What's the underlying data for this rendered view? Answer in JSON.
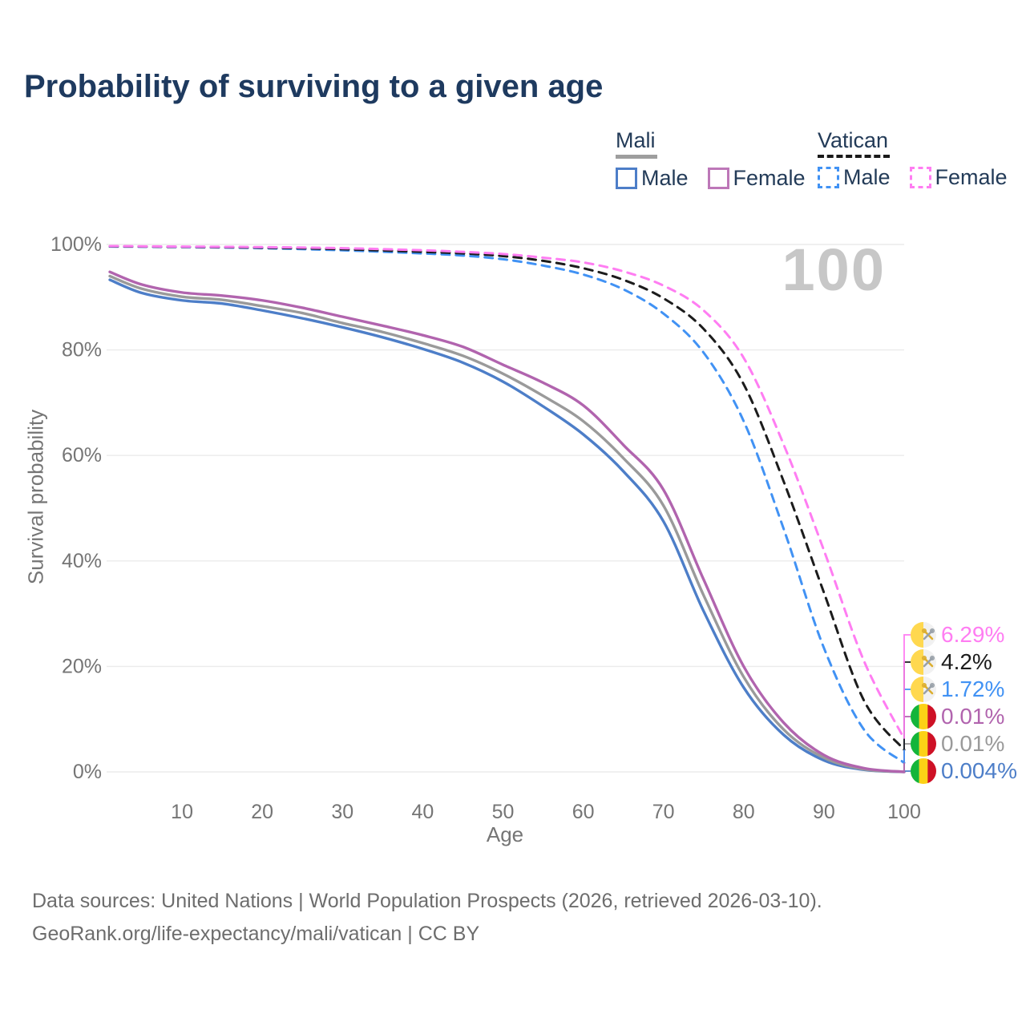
{
  "title": "Probability of surviving to a given age",
  "watermark_age": "100",
  "legend": {
    "groups": [
      {
        "id": "mali",
        "title": "Mali",
        "line_style": "solid",
        "underline_color": "#9e9e9e",
        "items": [
          {
            "id": "mali-male",
            "label": "Male",
            "color": "#4d7ec8",
            "line_style": "solid"
          },
          {
            "id": "mali-female",
            "label": "Female",
            "color": "#bd77b8",
            "line_style": "solid"
          }
        ]
      },
      {
        "id": "vatican",
        "title": "Vatican",
        "line_style": "dashed",
        "underline_color": "#1a1a1a",
        "items": [
          {
            "id": "vatican-male",
            "label": "Male",
            "color": "#4192f4",
            "line_style": "dashed"
          },
          {
            "id": "vatican-female",
            "label": "Female",
            "color": "#ff7df2",
            "line_style": "dashed"
          }
        ]
      }
    ]
  },
  "axes": {
    "y_title": "Survival probability",
    "x_title": "Age",
    "y_ticks": [
      {
        "value": 100,
        "label": "100%"
      },
      {
        "value": 80,
        "label": "80%"
      },
      {
        "value": 60,
        "label": "60%"
      },
      {
        "value": 40,
        "label": "40%"
      },
      {
        "value": 20,
        "label": "20%"
      },
      {
        "value": 0,
        "label": "0%"
      }
    ],
    "x_ticks": [
      {
        "value": 10,
        "label": "10"
      },
      {
        "value": 20,
        "label": "20"
      },
      {
        "value": 30,
        "label": "30"
      },
      {
        "value": 40,
        "label": "40"
      },
      {
        "value": 50,
        "label": "50"
      },
      {
        "value": 60,
        "label": "60"
      },
      {
        "value": 70,
        "label": "70"
      },
      {
        "value": 80,
        "label": "80"
      },
      {
        "value": 90,
        "label": "90"
      },
      {
        "value": 100,
        "label": "100"
      }
    ]
  },
  "footer": {
    "line1": "Data sources: United Nations | World Population Prospects (2026, retrieved 2026-03-10).",
    "line2": "GeoRank.org/life-expectancy/mali/vatican | CC BY"
  },
  "chart_data": {
    "type": "line",
    "title": "Probability of surviving to a given age",
    "xlabel": "Age",
    "ylabel": "Survival probability",
    "xlim": [
      1,
      100
    ],
    "ylim": [
      0,
      100
    ],
    "grid": "horizontal",
    "legend_position": "top-right",
    "series": [
      {
        "id": "vatican-male",
        "country": "Vatican",
        "sex": "Male",
        "color": "#4192f4",
        "line_style": "dashed",
        "flag": "vatican",
        "end_label": "1.72%",
        "x": [
          1,
          10,
          20,
          30,
          40,
          45,
          50,
          55,
          60,
          65,
          70,
          75,
          80,
          85,
          90,
          95,
          100
        ],
        "values": [
          99.6,
          99.5,
          99.3,
          98.9,
          98.3,
          97.9,
          97.2,
          96.0,
          94.3,
          91.5,
          86.9,
          79.5,
          66.5,
          46.0,
          23.5,
          8.0,
          1.72
        ]
      },
      {
        "id": "vatican-all",
        "country": "Vatican",
        "sex": "All",
        "color": "#1c1c1c",
        "line_style": "dashed",
        "flag": "vatican",
        "end_label": "4.2%",
        "x": [
          1,
          10,
          20,
          30,
          40,
          45,
          50,
          55,
          60,
          65,
          70,
          75,
          80,
          85,
          90,
          95,
          100
        ],
        "values": [
          99.65,
          99.55,
          99.4,
          99.1,
          98.6,
          98.3,
          97.8,
          96.9,
          95.5,
          93.3,
          89.8,
          84.0,
          73.5,
          55.0,
          34.0,
          13.5,
          4.2
        ]
      },
      {
        "id": "vatican-female",
        "country": "Vatican",
        "sex": "Female",
        "color": "#ff7df2",
        "line_style": "dashed",
        "flag": "vatican",
        "end_label": "6.29%",
        "x": [
          1,
          10,
          20,
          30,
          40,
          45,
          50,
          55,
          60,
          65,
          70,
          75,
          80,
          85,
          90,
          95,
          100
        ],
        "values": [
          99.7,
          99.6,
          99.5,
          99.3,
          98.9,
          98.6,
          98.2,
          97.5,
          96.6,
          94.9,
          92.2,
          87.5,
          78.5,
          62.0,
          42.0,
          21.0,
          6.29
        ]
      },
      {
        "id": "mali-male",
        "country": "Mali",
        "sex": "Male",
        "color": "#4d7ec8",
        "line_style": "solid",
        "flag": "mali",
        "end_label": "0.004%",
        "x": [
          1,
          5,
          10,
          15,
          20,
          25,
          30,
          35,
          40,
          45,
          50,
          55,
          60,
          65,
          70,
          75,
          80,
          85,
          90,
          95,
          100
        ],
        "values": [
          93.3,
          90.8,
          89.4,
          88.8,
          87.5,
          86.0,
          84.3,
          82.4,
          80.2,
          77.6,
          74.0,
          69.3,
          64.0,
          57.0,
          47.5,
          30.5,
          16.0,
          7.0,
          2.2,
          0.4,
          0.004
        ]
      },
      {
        "id": "mali-all",
        "country": "Mali",
        "sex": "All",
        "color": "#9a9a9a",
        "line_style": "solid",
        "flag": "mali",
        "end_label": "0.01%",
        "x": [
          1,
          5,
          10,
          15,
          20,
          25,
          30,
          35,
          40,
          45,
          50,
          55,
          60,
          65,
          70,
          75,
          80,
          85,
          90,
          95,
          100
        ],
        "values": [
          94.0,
          91.6,
          90.1,
          89.5,
          88.3,
          87.0,
          85.1,
          83.4,
          81.3,
          78.9,
          75.5,
          71.3,
          66.5,
          59.5,
          50.5,
          33.5,
          18.0,
          8.0,
          2.7,
          0.5,
          0.01
        ]
      },
      {
        "id": "mali-female",
        "country": "Mali",
        "sex": "Female",
        "color": "#b164ae",
        "line_style": "solid",
        "flag": "mali",
        "end_label": "0.01%",
        "x": [
          1,
          5,
          10,
          15,
          20,
          25,
          30,
          35,
          40,
          45,
          50,
          55,
          60,
          65,
          70,
          75,
          80,
          85,
          90,
          95,
          100
        ],
        "values": [
          94.8,
          92.4,
          90.9,
          90.3,
          89.4,
          88.0,
          86.3,
          84.6,
          82.8,
          80.6,
          77.2,
          73.8,
          69.5,
          62.0,
          53.5,
          36.5,
          20.0,
          9.3,
          3.2,
          0.7,
          0.01
        ]
      }
    ],
    "flag_colors": {
      "mali": [
        "#14b53a",
        "#fcd116",
        "#ce1126"
      ],
      "vatican": [
        "#ffd84f",
        "#f1f1f1"
      ],
      "vatican_key_gold": "#dcae2f",
      "vatican_key_silver": "#99a1a9"
    }
  }
}
